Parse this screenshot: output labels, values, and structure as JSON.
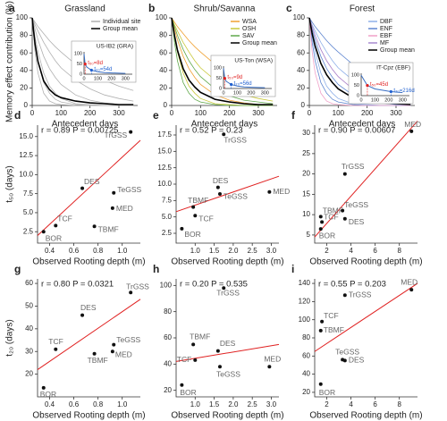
{
  "chart_data": [
    {
      "type": "line",
      "panel": "a",
      "title": "Grassland",
      "xlabel": "Antecedent days",
      "ylabel": "Memory effect contribution (%)",
      "x": [
        0,
        10,
        20,
        40,
        60,
        80,
        100,
        150,
        200,
        250,
        300,
        350
      ],
      "xlim": [
        0,
        365
      ],
      "xticks": [
        0,
        100,
        200,
        300
      ],
      "ylim": [
        0,
        100
      ],
      "yticks": [
        0,
        20,
        40,
        60,
        80,
        100
      ],
      "series": [
        {
          "name": "Individual site",
          "color": "#b0b0b0",
          "values": [
            [
              100,
              61,
              37,
              14,
              5,
              2,
              1,
              0,
              0,
              0,
              0,
              0
            ],
            [
              100,
              72,
              51,
              26,
              14,
              7,
              4,
              1,
              0,
              0,
              0,
              0
            ],
            [
              100,
              78,
              61,
              37,
              22,
              14,
              8,
              2,
              1,
              0,
              0,
              0
            ],
            [
              100,
              87,
              75,
              56,
              42,
              32,
              24,
              12,
              6,
              3,
              1,
              1
            ],
            [
              100,
              92,
              85,
              72,
              61,
              51,
              43,
              29,
              19,
              12,
              8,
              5
            ],
            [
              100,
              95,
              90,
              82,
              74,
              67,
              61,
              47,
              37,
              29,
              22,
              17
            ]
          ]
        },
        {
          "name": "Group mean",
          "color": "#000000",
          "values": [
            [
              100,
              70,
              50,
              28,
              18,
              12,
              9,
              5,
              3,
              2,
              1,
              1
            ]
          ]
        }
      ],
      "inset": {
        "title": "US-IB2 (GRA)",
        "color": "#3a6fc4",
        "x": [
          0,
          8,
          20,
          54,
          100,
          150,
          200,
          300
        ],
        "values": [
          100,
          50,
          35,
          20,
          12,
          8,
          6,
          4
        ],
        "xlim": [
          0,
          350
        ],
        "xticks": [
          0,
          100,
          200,
          300
        ],
        "ylim": [
          0,
          110
        ],
        "yticks": [
          0,
          50,
          100
        ],
        "marks": [
          {
            "level": 50,
            "days": 8,
            "label": "t₅₀=8d",
            "color": "#e02020"
          },
          {
            "level": 20,
            "days": 54,
            "label": "t₂₀=54d",
            "color": "#2060d0"
          }
        ]
      }
    },
    {
      "type": "line",
      "panel": "b",
      "title": "Shrub/Savanna",
      "xlabel": "Antecedent days",
      "x": [
        0,
        10,
        20,
        40,
        60,
        80,
        100,
        150,
        200,
        250,
        300,
        350
      ],
      "xlim": [
        0,
        365
      ],
      "xticks": [
        0,
        100,
        200,
        300
      ],
      "ylim": [
        0,
        100
      ],
      "yticks": [
        0,
        20,
        40,
        60,
        80,
        100
      ],
      "series": [
        {
          "name": "WSA",
          "color": "#f0a030",
          "values": [
            [
              100,
              87,
              75,
              56,
              42,
              32,
              24,
              12,
              6,
              3,
              1,
              1
            ],
            [
              100,
              95,
              90,
              82,
              74,
              67,
              61,
              47,
              37,
              29,
              22,
              17
            ]
          ]
        },
        {
          "name": "OSH",
          "color": "#c9c83a",
          "values": [
            [
              100,
              78,
              61,
              37,
              22,
              14,
              8,
              2,
              1,
              0,
              0,
              0
            ],
            [
              100,
              92,
              85,
              72,
              61,
              51,
              43,
              29,
              19,
              12,
              8,
              5
            ]
          ]
        },
        {
          "name": "SAV",
          "color": "#5fa84a",
          "values": [
            [
              100,
              72,
              51,
              26,
              14,
              7,
              4,
              1,
              0,
              0,
              0,
              0
            ],
            [
              100,
              90,
              80,
              64,
              51,
              41,
              33,
              19,
              11,
              6,
              4,
              2
            ]
          ]
        },
        {
          "name": "Group mean",
          "color": "#000000",
          "values": [
            [
              100,
              80,
              63,
              42,
              29,
              21,
              15,
              7,
              4,
              2,
              1,
              1
            ]
          ]
        }
      ],
      "inset": {
        "title": "US-Ton (WSA)",
        "color": "#3a6fc4",
        "x": [
          0,
          9,
          20,
          56,
          100,
          150,
          200,
          300
        ],
        "values": [
          100,
          50,
          35,
          20,
          12,
          8,
          6,
          4
        ],
        "xlim": [
          0,
          350
        ],
        "xticks": [
          0,
          100,
          200,
          300
        ],
        "ylim": [
          0,
          110
        ],
        "yticks": [
          0,
          50,
          100
        ],
        "marks": [
          {
            "level": 50,
            "days": 9,
            "label": "t₅₀=9d",
            "color": "#e02020"
          },
          {
            "level": 20,
            "days": 56,
            "label": "t₂₀=56d",
            "color": "#2060d0"
          }
        ]
      }
    },
    {
      "type": "line",
      "panel": "c",
      "title": "Forest",
      "xlabel": "Antecedent days",
      "x": [
        0,
        10,
        20,
        40,
        60,
        80,
        100,
        150,
        200,
        250,
        300,
        350
      ],
      "xlim": [
        0,
        365
      ],
      "xticks": [
        0,
        100,
        200,
        300
      ],
      "ylim": [
        0,
        100
      ],
      "yticks": [
        0,
        20,
        40,
        60,
        80,
        100
      ],
      "series": [
        {
          "name": "DBF",
          "color": "#8fb0e8",
          "values": [
            [
              100,
              78,
              61,
              37,
              22,
              14,
              8,
              2,
              1,
              0,
              0,
              0
            ],
            [
              100,
              92,
              85,
              72,
              61,
              51,
              43,
              29,
              19,
              12,
              8,
              5
            ]
          ]
        },
        {
          "name": "ENF",
          "color": "#5f86d0",
          "values": [
            [
              100,
              87,
              75,
              56,
              42,
              32,
              24,
              12,
              6,
              3,
              1,
              1
            ],
            [
              100,
              95,
              90,
              82,
              74,
              67,
              61,
              47,
              37,
              29,
              22,
              17
            ],
            [
              100,
              72,
              51,
              26,
              14,
              7,
              4,
              1,
              0,
              0,
              0,
              0
            ]
          ]
        },
        {
          "name": "EBF",
          "color": "#f0a0c8",
          "values": [
            [
              100,
              90,
              80,
              64,
              51,
              41,
              33,
              19,
              11,
              6,
              4,
              2
            ],
            [
              100,
              61,
              37,
              14,
              5,
              2,
              1,
              0,
              0,
              0,
              0,
              0
            ]
          ]
        },
        {
          "name": "MF",
          "color": "#a98bd0",
          "values": [
            [
              100,
              90,
              80,
              64,
              51,
              41,
              33,
              19,
              11,
              6,
              4,
              2
            ]
          ]
        },
        {
          "name": "Group mean",
          "color": "#000000",
          "values": [
            [
              100,
              82,
              68,
              48,
              35,
              26,
              19,
              9,
              5,
              3,
              2,
              1
            ]
          ]
        }
      ],
      "inset": {
        "title": "IT-Cpz (EBF)",
        "color": "#3a6fc4",
        "x": [
          0,
          45,
          100,
          216,
          300
        ],
        "values": [
          100,
          50,
          33,
          20,
          15
        ],
        "xlim": [
          0,
          350
        ],
        "xticks": [
          0,
          100,
          200,
          300
        ],
        "ylim": [
          0,
          110
        ],
        "yticks": [
          0,
          50,
          100
        ],
        "marks": [
          {
            "level": 50,
            "days": 45,
            "label": "t₅₀=45d",
            "color": "#e02020"
          },
          {
            "level": 20,
            "days": 216,
            "label": "t₂₀=216d",
            "color": "#2060d0"
          }
        ]
      }
    },
    {
      "type": "scatter",
      "panel": "d",
      "stats": "r = 0.89  P = 0.00725",
      "xlabel": "Observed Rooting depth (m)",
      "ylabel": "t₅₀ (days)",
      "categories": [
        "BOR",
        "TCF",
        "TBMF",
        "DES",
        "TeGSS",
        "MED",
        "TrGSS"
      ],
      "x": [
        0.35,
        0.45,
        0.77,
        0.67,
        0.93,
        0.92,
        1.07
      ],
      "values": [
        2.5,
        3.3,
        3.2,
        8.2,
        7.6,
        5.6,
        15.6
      ],
      "xlim": [
        0.3,
        1.15
      ],
      "xticks": [
        0.4,
        0.6,
        0.8,
        {
          "value": 1,
          "label": "1.0"
        }
      ],
      "ylim": [
        1,
        16.5
      ],
      "yticks": [
        2.5,
        {
          "value": 5,
          "label": "5.0"
        },
        7.5,
        {
          "value": 10,
          "label": "10.0"
        },
        12.5,
        {
          "value": 15,
          "label": "15.0"
        }
      ],
      "fit": {
        "color": "#e02020",
        "x": [
          0.3,
          1.15
        ],
        "y": [
          2,
          14.5
        ]
      }
    },
    {
      "type": "scatter",
      "panel": "e",
      "stats": "r = 0.52  P = 0.23",
      "xlabel": "Observed Rooting depth (m)",
      "categories": [
        "BOR",
        "TCF",
        "TBMF",
        "DES",
        "TeGSS",
        "MED",
        "TrGSS"
      ],
      "x": [
        0.65,
        1.0,
        0.95,
        1.6,
        1.65,
        2.95,
        1.75
      ],
      "values": [
        3.2,
        5.2,
        6.5,
        9.5,
        8.5,
        8.8,
        17.6
      ],
      "xlim": [
        0.5,
        3.2
      ],
      "xticks": [
        {
          "value": 1,
          "label": "1.0"
        },
        1.5,
        {
          "value": 2,
          "label": "2.0"
        },
        2.5,
        {
          "value": 3,
          "label": "3.0"
        }
      ],
      "ylim": [
        1,
        19
      ],
      "yticks": [
        2.5,
        {
          "value": 5,
          "label": "5.0"
        },
        7.5,
        {
          "value": 10,
          "label": "10.0"
        },
        12.5,
        {
          "value": 15,
          "label": "15.0"
        },
        17.5
      ],
      "fit": {
        "color": "#e02020",
        "x": [
          0.5,
          3.2
        ],
        "y": [
          5.8,
          11.2
        ]
      }
    },
    {
      "type": "scatter",
      "panel": "f",
      "stats": "r = 0.90  P = 0.00607",
      "xlabel": "Observed Rooting depth (m)",
      "categories": [
        "BOR",
        "TCF",
        "TBMF",
        "DES",
        "TeGSS",
        "MED",
        "TrGSS"
      ],
      "x": [
        1.5,
        1.6,
        1.5,
        3.5,
        3.3,
        9,
        3.5
      ],
      "values": [
        6.5,
        8.2,
        9.5,
        9,
        11,
        30.5,
        20
      ],
      "xlim": [
        1,
        9.5
      ],
      "xticks": [
        2,
        4,
        6,
        8
      ],
      "ylim": [
        3,
        32
      ],
      "yticks": [
        5,
        10,
        15,
        20,
        25,
        30
      ],
      "fit": {
        "color": "#e02020",
        "x": [
          1,
          9.5
        ],
        "y": [
          4.5,
          33
        ]
      }
    },
    {
      "type": "scatter",
      "panel": "g",
      "stats": "r = 0.80  P = 0.0321",
      "xlabel": "Observed Rooting depth (m)",
      "ylabel": "t₂₀ (days)",
      "categories": [
        "BOR",
        "TCF",
        "TBMF",
        "DES",
        "TeGSS",
        "MED",
        "TrGSS"
      ],
      "x": [
        0.35,
        0.45,
        0.77,
        0.67,
        0.93,
        0.92,
        1.07
      ],
      "values": [
        14,
        31,
        29,
        46,
        33,
        30,
        56
      ],
      "xlim": [
        0.3,
        1.15
      ],
      "xticks": [
        0.4,
        0.6,
        0.8,
        {
          "value": 1,
          "label": "1.0"
        }
      ],
      "ylim": [
        10,
        62
      ],
      "yticks": [
        20,
        30,
        40,
        50,
        60
      ],
      "fit": {
        "color": "#e02020",
        "x": [
          0.3,
          1.15
        ],
        "y": [
          22,
          53
        ]
      }
    },
    {
      "type": "scatter",
      "panel": "h",
      "stats": "r = 0.20  P = 0.535",
      "xlabel": "Observed Rooting depth (m)",
      "categories": [
        "BOR",
        "TCF",
        "TBMF",
        "DES",
        "TeGSS",
        "MED",
        "TrGSS"
      ],
      "x": [
        0.65,
        1.0,
        0.95,
        1.6,
        1.65,
        2.95,
        1.75
      ],
      "values": [
        24,
        43,
        55,
        50,
        38,
        38,
        98
      ],
      "xlim": [
        0.5,
        3.2
      ],
      "xticks": [
        {
          "value": 1,
          "label": "1.0"
        },
        1.5,
        {
          "value": 2,
          "label": "2.0"
        },
        2.5,
        {
          "value": 3,
          "label": "3.0"
        }
      ],
      "ylim": [
        15,
        105
      ],
      "yticks": [
        20,
        40,
        60,
        80,
        100
      ],
      "fit": {
        "color": "#e02020",
        "x": [
          0.5,
          3.2
        ],
        "y": [
          42,
          55
        ]
      }
    },
    {
      "type": "scatter",
      "panel": "i",
      "stats": "r = 0.55  P = 0.203",
      "xlabel": "Observed Rooting depth (m)",
      "categories": [
        "BOR",
        "TCF",
        "TBMF",
        "DES",
        "TeGSS",
        "MED",
        "TrGSS"
      ],
      "x": [
        1.5,
        1.6,
        1.5,
        3.5,
        3.3,
        9,
        3.5
      ],
      "values": [
        29,
        98,
        88,
        55,
        56,
        133,
        127
      ],
      "xlim": [
        1,
        9.5
      ],
      "xticks": [
        2,
        4,
        6,
        8
      ],
      "ylim": [
        15,
        145
      ],
      "yticks": [
        20,
        40,
        60,
        80,
        100,
        120,
        140
      ],
      "fit": {
        "color": "#e02020",
        "x": [
          1,
          9.5
        ],
        "y": [
          65,
          140
        ]
      }
    }
  ]
}
